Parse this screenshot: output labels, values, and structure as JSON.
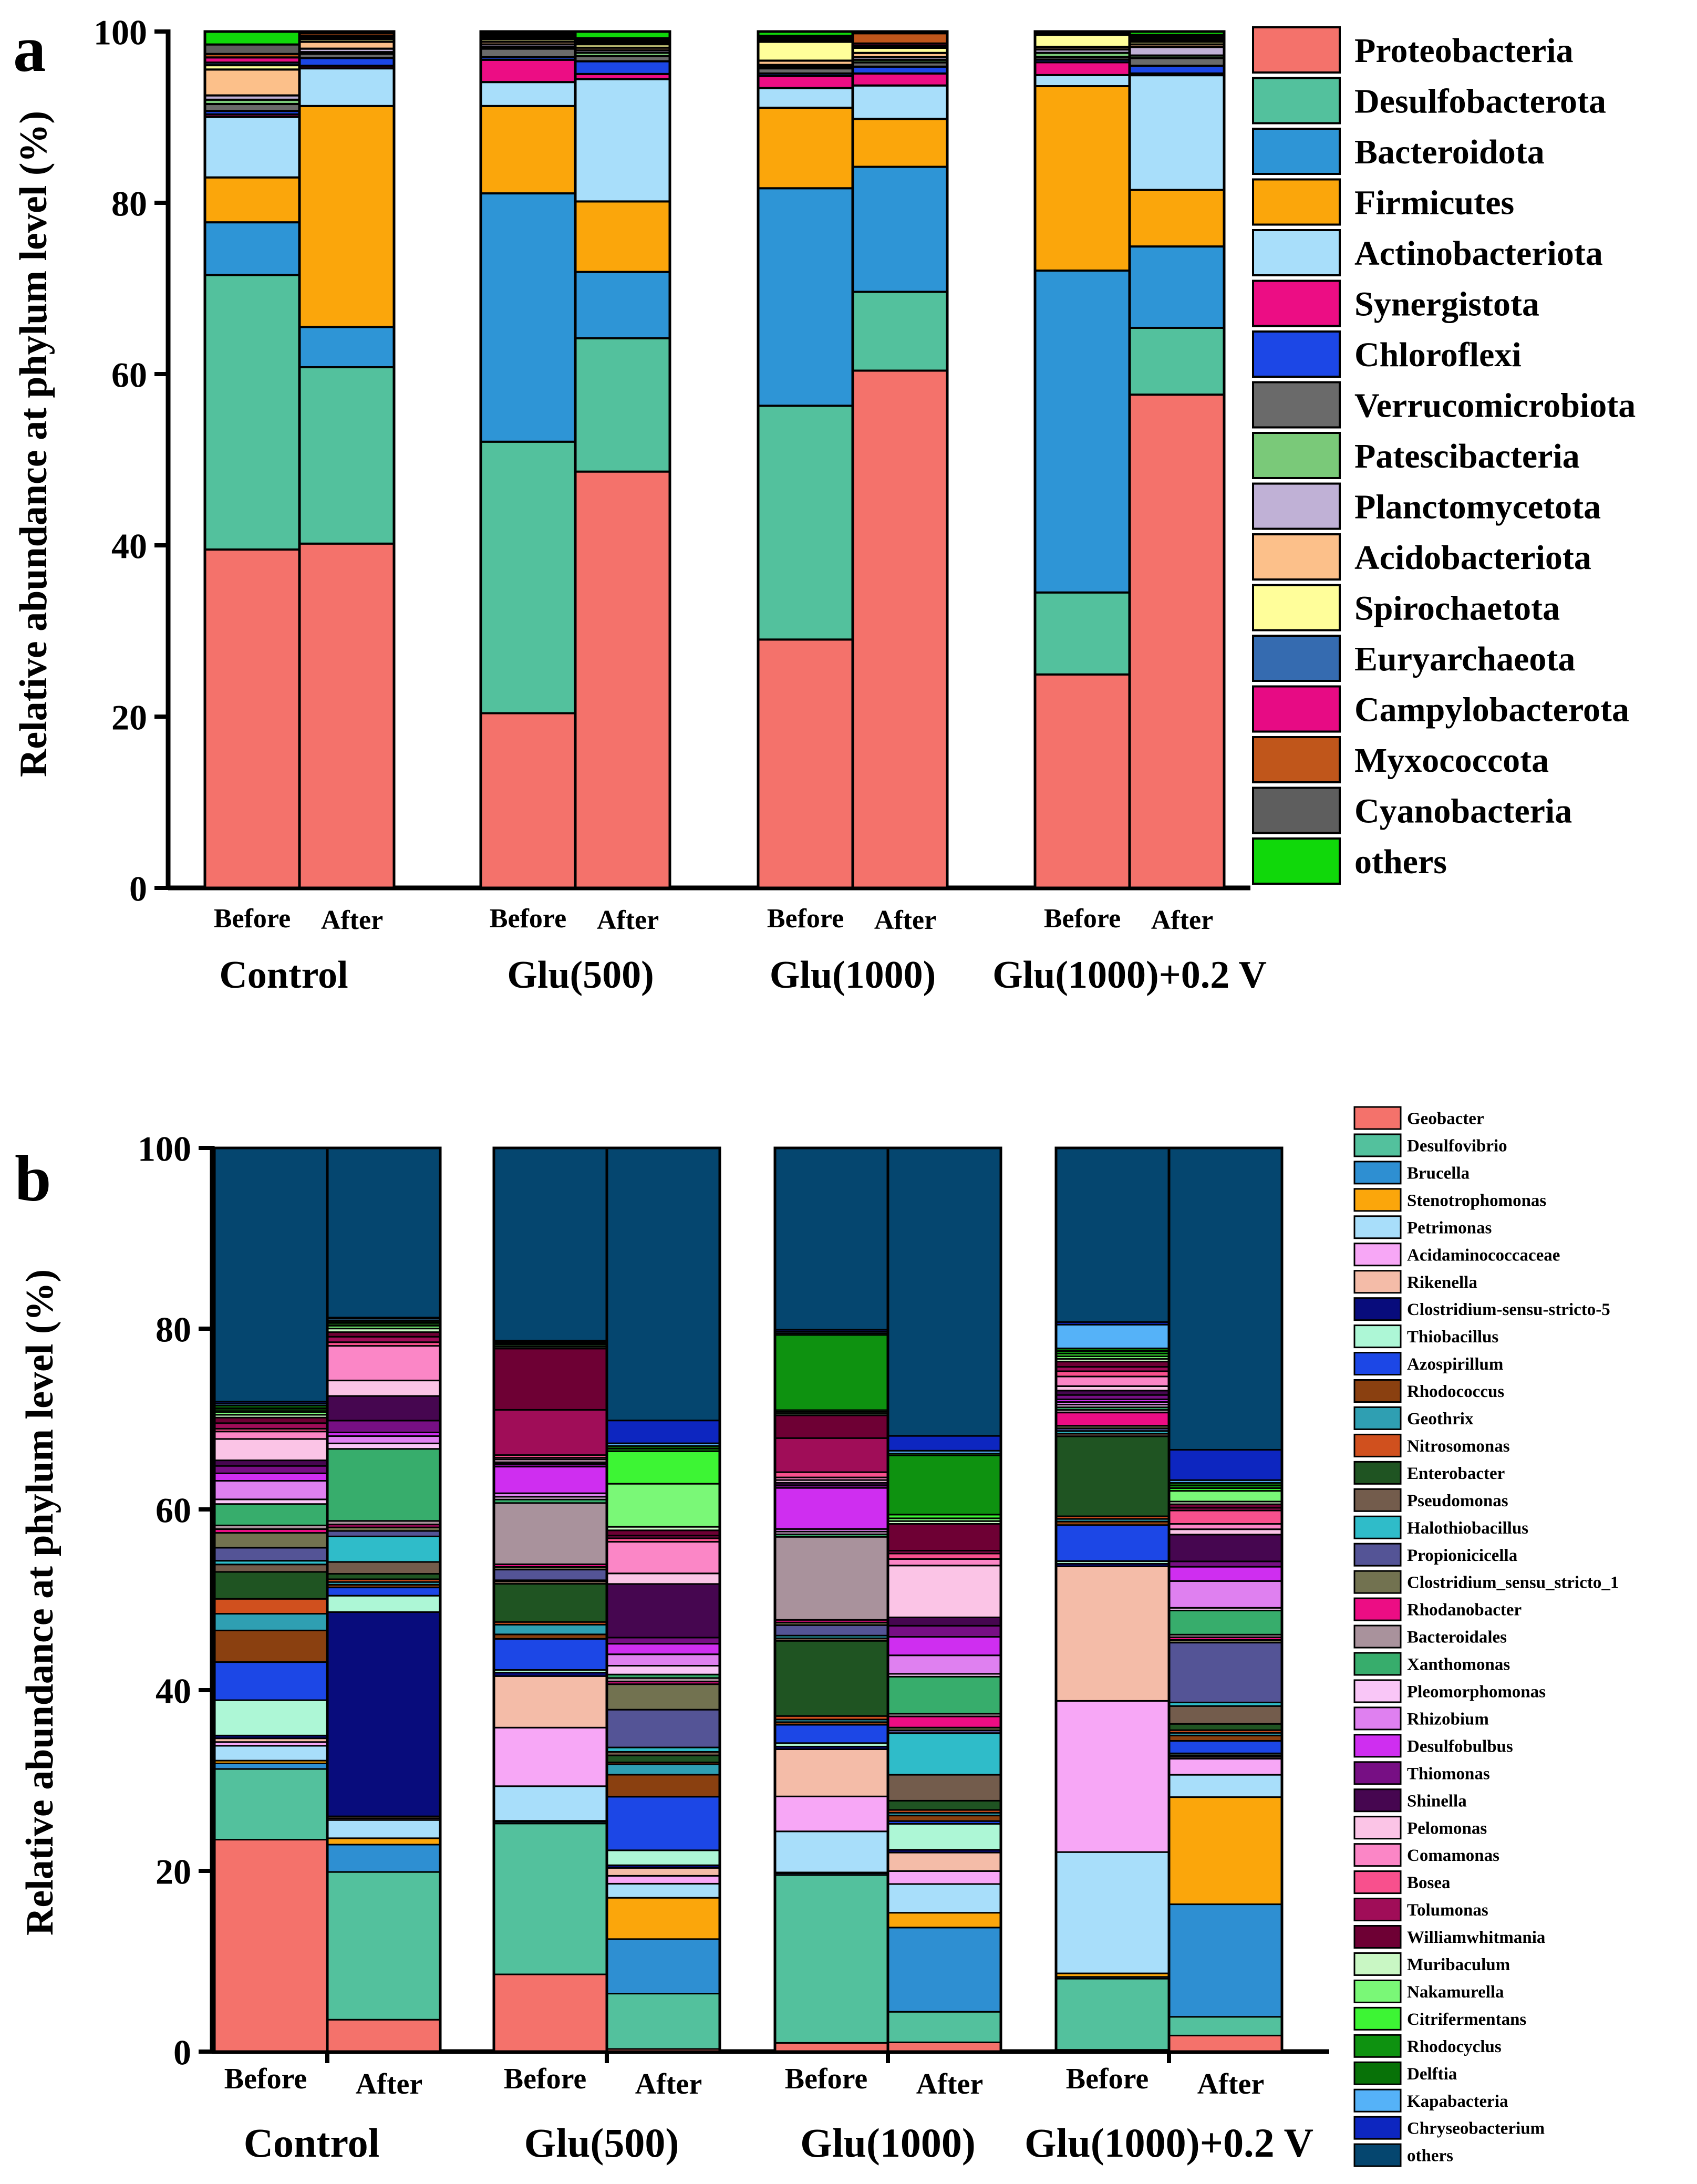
{
  "figure": {
    "panel_a_letter": "a",
    "panel_b_letter": "b"
  },
  "chart_data": [
    {
      "type": "bar",
      "stacked": true,
      "panel": "a",
      "ylabel": "Relative abundance at phylum level (%)",
      "ylim": [
        0,
        100
      ],
      "yticks": [
        0,
        20,
        40,
        60,
        80,
        100
      ],
      "legend_position": "right",
      "groups": [
        "Control",
        "Glu(500)",
        "Glu(1000)",
        "Glu(1000)+0.2 V"
      ],
      "bar_labels": [
        "Before",
        "After"
      ],
      "legend": [
        "Proteobacteria",
        "Desulfobacterota",
        "Bacteroidota",
        "Firmicutes",
        "Actinobacteriota",
        "Synergistota",
        "Chloroflexi",
        "Verrucomicrobiota",
        "Patescibacteria",
        "Planctomycetota",
        "Acidobacteriota",
        "Spirochaetota",
        "Euryarchaeota",
        "Campylobacterota",
        "Myxococcota",
        "Cyanobacteria",
        "others"
      ],
      "colors": [
        "#f4726b",
        "#53c19d",
        "#2e95d6",
        "#fba60b",
        "#a8defa",
        "#ec0d84",
        "#1c47e6",
        "#6a6a6a",
        "#7ac979",
        "#c0b1d6",
        "#fcc08a",
        "#fffe9a",
        "#356bb0",
        "#e70b84",
        "#c0561b",
        "#5e5e5e",
        "#10d80a"
      ],
      "bars": [
        {
          "group": "Control",
          "label": "Before",
          "values": [
            39.2,
            31.8,
            6.1,
            5.2,
            7.0,
            0.3,
            0.4,
            0.8,
            0.5,
            0.5,
            3.0,
            0.5,
            0.3,
            0.6,
            0.4,
            1.1,
            1.5
          ]
        },
        {
          "group": "Control",
          "label": "After",
          "values": [
            40.2,
            20.6,
            4.7,
            25.8,
            4.4,
            0.3,
            0.9,
            0.5,
            0.2,
            0.4,
            0.8,
            0.3,
            0.2,
            0.2,
            0.3,
            0.1,
            0.1
          ]
        },
        {
          "group": "Glu(500)",
          "label": "Before",
          "values": [
            20.4,
            31.7,
            29.0,
            10.2,
            2.8,
            2.6,
            0.3,
            1.0,
            0.2,
            0.3,
            0.3,
            0.3,
            0.2,
            0.2,
            0.2,
            0.1,
            0.2
          ]
        },
        {
          "group": "Glu(500)",
          "label": "After",
          "values": [
            49.0,
            15.7,
            7.8,
            8.3,
            14.4,
            0.6,
            1.5,
            0.6,
            0.4,
            0.3,
            0.3,
            0.4,
            0.2,
            0.2,
            0.2,
            0.1,
            0.8
          ]
        },
        {
          "group": "Glu(1000)",
          "label": "Before",
          "values": [
            29.0,
            27.3,
            25.4,
            9.4,
            2.3,
            1.4,
            0.3,
            0.6,
            0.2,
            0.2,
            0.5,
            2.2,
            0.2,
            0.2,
            0.2,
            0.1,
            0.5
          ]
        },
        {
          "group": "Glu(1000)",
          "label": "After",
          "values": [
            60.4,
            9.2,
            14.6,
            5.6,
            3.9,
            1.4,
            0.8,
            0.5,
            0.3,
            0.3,
            0.5,
            0.6,
            0.2,
            0.3,
            1.2,
            0.1,
            0.1
          ]
        },
        {
          "group": "Glu(1000)+0.2 V",
          "label": "Before",
          "values": [
            25.0,
            9.6,
            37.7,
            21.6,
            1.3,
            1.5,
            0.3,
            0.3,
            0.5,
            0.4,
            0.3,
            1.4,
            0.2,
            0.1,
            0.1,
            0.0,
            0.0
          ]
        },
        {
          "group": "Glu(1000)+0.2 V",
          "label": "After",
          "values": [
            57.6,
            7.8,
            9.5,
            6.6,
            13.4,
            0.2,
            0.9,
            0.9,
            0.3,
            1.0,
            0.3,
            0.3,
            0.2,
            0.2,
            0.2,
            0.2,
            0.4
          ]
        }
      ]
    },
    {
      "type": "bar",
      "stacked": true,
      "panel": "b",
      "ylabel": "Relative abundance at phylum level (%)",
      "ylim": [
        0,
        100
      ],
      "yticks": [
        0,
        20,
        40,
        60,
        80,
        100
      ],
      "legend_position": "right",
      "groups": [
        "Control",
        "Glu(500)",
        "Glu(1000)",
        "Glu(1000)+0.2 V"
      ],
      "bar_labels": [
        "Before",
        "After"
      ],
      "legend": [
        "Geobacter",
        "Desulfovibrio",
        "Brucella",
        "Stenotrophomonas",
        "Petrimonas",
        "Acidaminococcaceae",
        "Rikenella",
        "Clostridium-sensu-stricto-5",
        "Thiobacillus",
        "Azospirillum",
        "Rhodococcus",
        "Geothrix",
        "Nitrosomonas",
        "Enterobacter",
        "Pseudomonas",
        "Halothiobacillus",
        "Propionicicella",
        "Clostridium_sensu_stricto_1",
        "Rhodanobacter",
        "Bacteroidales",
        "Xanthomonas",
        "Pleomorphomonas",
        "Rhizobium",
        "Desulfobulbus",
        "Thiomonas",
        "Shinella",
        "Pelomonas",
        "Comamonas",
        "Bosea",
        "Tolumonas",
        "Williamwhitmania",
        "Muribaculum",
        "Nakamurella",
        "Citrifermentans",
        "Rhodocyclus",
        "Delftia",
        "Kapabacteria",
        "Chryseobacterium",
        "others"
      ],
      "colors": [
        "#f4726b",
        "#53c19d",
        "#2e8fd2",
        "#fba60b",
        "#a8defa",
        "#f7a7f6",
        "#f4bca8",
        "#080c7c",
        "#adf7d6",
        "#1c47e6",
        "#8a4010",
        "#2f9fb2",
        "#d0501e",
        "#1f5422",
        "#735c4c",
        "#2fbcc9",
        "#545496",
        "#727250",
        "#ec0d84",
        "#a9929c",
        "#37ad6c",
        "#f9c6f7",
        "#df80f0",
        "#cf2ef0",
        "#770f84",
        "#460650",
        "#fbc4e6",
        "#fb86c6",
        "#f8508d",
        "#a00d58",
        "#6e0034",
        "#c9f7c4",
        "#7af877",
        "#3df534",
        "#0e9210",
        "#087208",
        "#55b2f8",
        "#0d26c0",
        "#05466f"
      ],
      "bars": [
        {
          "group": "Control",
          "label": "Before",
          "values": [
            22.8,
            7.6,
            0.6,
            0.3,
            1.6,
            0.4,
            0.4,
            0.3,
            3.8,
            4.1,
            3.4,
            1.8,
            1.6,
            2.9,
            0.8,
            0.4,
            1.4,
            1.6,
            0.4,
            0.4,
            2.3,
            0.5,
            2.0,
            0.8,
            0.8,
            0.6,
            2.3,
            0.8,
            0.3,
            0.6,
            0.6,
            0.3,
            0.3,
            0.2,
            0.2,
            0.3,
            0.2,
            0.2,
            27.3
          ]
        },
        {
          "group": "Control",
          "label": "After",
          "values": [
            3.5,
            16.2,
            3.0,
            0.7,
            2.0,
            0.2,
            0.2,
            22.4,
            1.8,
            0.9,
            0.3,
            0.3,
            0.3,
            0.6,
            1.3,
            2.8,
            0.6,
            0.4,
            0.3,
            0.4,
            7.9,
            0.6,
            0.8,
            0.4,
            1.3,
            2.7,
            1.7,
            3.8,
            0.4,
            0.6,
            0.5,
            0.4,
            0.3,
            0.2,
            0.2,
            0.2,
            0.2,
            0.1,
            18.6
          ]
        },
        {
          "group": "Glu(500)",
          "label": "Before",
          "values": [
            8.7,
            17.0,
            0.2,
            0.1,
            3.9,
            6.6,
            5.8,
            0.4,
            0.3,
            3.5,
            0.5,
            1.1,
            0.3,
            4.3,
            0.3,
            0.1,
            1.2,
            0.3,
            0.3,
            6.9,
            0.4,
            0.3,
            0.4,
            3.0,
            0.3,
            0.2,
            0.3,
            0.2,
            0.3,
            5.1,
            6.9,
            0.2,
            0.2,
            0.1,
            0.1,
            0.1,
            0.1,
            0.1,
            21.7
          ]
        },
        {
          "group": "Glu(500)",
          "label": "After",
          "values": [
            0.3,
            6.3,
            6.2,
            4.7,
            1.6,
            0.9,
            0.9,
            0.3,
            1.7,
            6.1,
            2.5,
            1.2,
            0.2,
            0.8,
            0.4,
            0.5,
            4.3,
            2.9,
            0.3,
            0.4,
            0.4,
            1.0,
            1.3,
            1.2,
            0.7,
            6.1,
            1.2,
            3.6,
            0.4,
            0.3,
            0.6,
            0.4,
            4.9,
            3.7,
            0.3,
            0.3,
            0.3,
            2.6,
            31.0
          ]
        },
        {
          "group": "Glu(1000)",
          "label": "Before",
          "values": [
            1.0,
            19.2,
            0.2,
            0.1,
            4.7,
            4.0,
            5.4,
            0.3,
            0.4,
            2.1,
            0.3,
            0.3,
            0.4,
            8.6,
            0.3,
            0.3,
            1.2,
            0.3,
            0.3,
            9.5,
            0.3,
            0.3,
            0.3,
            4.7,
            0.3,
            0.3,
            0.3,
            0.3,
            0.6,
            3.9,
            2.6,
            0.2,
            0.2,
            0.2,
            8.6,
            0.2,
            0.2,
            0.2,
            20.8
          ]
        },
        {
          "group": "Glu(1000)",
          "label": "After",
          "values": [
            1.0,
            3.3,
            9.1,
            1.6,
            3.1,
            1.4,
            2.0,
            0.3,
            2.8,
            0.3,
            0.6,
            0.3,
            0.3,
            1.0,
            2.8,
            4.5,
            0.3,
            0.3,
            1.2,
            0.3,
            4.0,
            0.3,
            2.0,
            2.0,
            1.2,
            0.9,
            5.6,
            0.7,
            0.6,
            0.3,
            2.9,
            0.3,
            0.3,
            0.4,
            6.4,
            0.2,
            0.3,
            1.6,
            31.1
          ]
        },
        {
          "group": "Glu(1000)+0.2 V",
          "label": "Before",
          "values": [
            0.2,
            8.1,
            0.2,
            0.4,
            13.8,
            17.2,
            15.3,
            0.3,
            0.3,
            4.1,
            0.4,
            0.3,
            0.3,
            9.1,
            0.3,
            0.3,
            0.3,
            0.3,
            1.5,
            0.3,
            0.3,
            0.3,
            0.3,
            0.3,
            0.5,
            0.5,
            0.5,
            1.1,
            0.6,
            0.5,
            0.6,
            0.3,
            0.3,
            0.3,
            0.3,
            0.3,
            2.7,
            0.3,
            19.8
          ]
        },
        {
          "group": "Glu(1000)+0.2 V",
          "label": "After",
          "values": [
            1.8,
            2.1,
            12.6,
            12.0,
            2.5,
            1.8,
            0.2,
            0.2,
            0.2,
            1.4,
            0.6,
            0.3,
            0.3,
            0.7,
            2.0,
            0.4,
            6.7,
            0.3,
            0.3,
            0.3,
            2.7,
            0.3,
            3.0,
            1.6,
            0.6,
            3.0,
            0.6,
            0.6,
            1.5,
            0.3,
            0.4,
            0.3,
            1.2,
            0.3,
            0.3,
            0.3,
            0.3,
            3.4,
            33.8
          ]
        }
      ]
    }
  ]
}
